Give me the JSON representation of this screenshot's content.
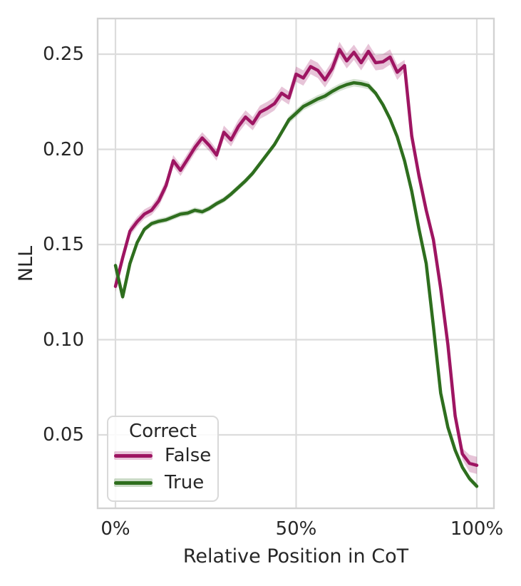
{
  "colors": {
    "background": "#ffffff",
    "grid": "#dcdcdc",
    "spine": "#d2d2d2",
    "text": "#262626",
    "legend_border": "#d9d9d9",
    "false_series": "#9e1562",
    "true_series": "#2e6e1e"
  },
  "chart_data": {
    "type": "line",
    "title": "",
    "xlabel": "Relative Position in CoT",
    "ylabel": "NLL",
    "grid": true,
    "legend": {
      "title": "Correct",
      "position": "lower left"
    },
    "xlim": [
      -4.93,
      104.74
    ],
    "ylim": [
      0.01142,
      0.26873
    ],
    "xticks": [
      {
        "value": 0,
        "label": "0%"
      },
      {
        "value": 50,
        "label": "50%"
      },
      {
        "value": 100,
        "label": "100%"
      }
    ],
    "yticks": [
      {
        "value": 0.25,
        "label": "0.25"
      },
      {
        "value": 0.2,
        "label": "0.20"
      },
      {
        "value": 0.15,
        "label": "0.15"
      },
      {
        "value": 0.1,
        "label": "0.10"
      },
      {
        "value": 0.05,
        "label": "0.05"
      }
    ],
    "x": [
      0,
      2,
      4,
      6,
      8,
      10,
      12,
      14,
      16,
      18,
      20,
      22,
      24,
      26,
      28,
      30,
      32,
      34,
      36,
      38,
      40,
      42,
      44,
      46,
      48,
      50,
      52,
      54,
      56,
      58,
      60,
      62,
      64,
      66,
      68,
      70,
      72,
      74,
      76,
      78,
      80,
      82,
      84,
      86,
      88,
      90,
      92,
      94,
      96,
      98,
      100
    ],
    "series": [
      {
        "name": "False",
        "color": "#9e1562",
        "band_opacity": 0.25,
        "values": [
          0.128,
          0.143,
          0.157,
          0.162,
          0.166,
          0.168,
          0.173,
          0.181,
          0.194,
          0.189,
          0.195,
          0.201,
          0.206,
          0.202,
          0.197,
          0.209,
          0.205,
          0.212,
          0.217,
          0.2135,
          0.2195,
          0.2215,
          0.224,
          0.2295,
          0.227,
          0.2395,
          0.2375,
          0.2435,
          0.2415,
          0.2365,
          0.2425,
          0.2525,
          0.2465,
          0.251,
          0.2455,
          0.2515,
          0.2455,
          0.246,
          0.2485,
          0.2405,
          0.244,
          0.207,
          0.186,
          0.168,
          0.1525,
          0.127,
          0.0975,
          0.06,
          0.04,
          0.035,
          0.034
        ],
        "err": [
          0.003,
          0.003,
          0.0025,
          0.0025,
          0.0025,
          0.0025,
          0.003,
          0.003,
          0.003,
          0.003,
          0.003,
          0.003,
          0.003,
          0.003,
          0.003,
          0.0035,
          0.0035,
          0.0035,
          0.0035,
          0.0035,
          0.0035,
          0.0035,
          0.0035,
          0.0035,
          0.0035,
          0.004,
          0.004,
          0.004,
          0.004,
          0.004,
          0.004,
          0.004,
          0.004,
          0.004,
          0.004,
          0.004,
          0.004,
          0.004,
          0.004,
          0.004,
          0.003,
          0.0018,
          0.0018,
          0.0018,
          0.0018,
          0.0015,
          0.0015,
          0.002,
          0.003,
          0.0045,
          0.0045
        ]
      },
      {
        "name": "True",
        "color": "#2e6e1e",
        "band_opacity": 0.2,
        "values": [
          0.139,
          0.1225,
          0.14,
          0.151,
          0.158,
          0.161,
          0.1622,
          0.163,
          0.1645,
          0.166,
          0.1665,
          0.168,
          0.1672,
          0.169,
          0.1715,
          0.1735,
          0.1765,
          0.18,
          0.1835,
          0.1875,
          0.1925,
          0.1975,
          0.2025,
          0.209,
          0.2155,
          0.219,
          0.2225,
          0.2245,
          0.2265,
          0.228,
          0.2305,
          0.2325,
          0.234,
          0.235,
          0.2345,
          0.2335,
          0.2295,
          0.2235,
          0.216,
          0.2065,
          0.194,
          0.178,
          0.158,
          0.14,
          0.107,
          0.072,
          0.054,
          0.042,
          0.033,
          0.027,
          0.023
        ],
        "err": [
          0.002,
          0.002,
          0.0015,
          0.0015,
          0.0015,
          0.0015,
          0.0015,
          0.0015,
          0.0015,
          0.0015,
          0.0015,
          0.0015,
          0.0015,
          0.0015,
          0.0015,
          0.0015,
          0.0015,
          0.0015,
          0.0015,
          0.0015,
          0.0015,
          0.0015,
          0.0015,
          0.0015,
          0.002,
          0.002,
          0.002,
          0.002,
          0.002,
          0.002,
          0.002,
          0.002,
          0.002,
          0.002,
          0.002,
          0.002,
          0.0015,
          0.0015,
          0.0015,
          0.0015,
          0.001,
          0.001,
          0.001,
          0.001,
          0.001,
          0.001,
          0.001,
          0.001,
          0.0015,
          0.0015,
          0.0015
        ]
      }
    ]
  }
}
